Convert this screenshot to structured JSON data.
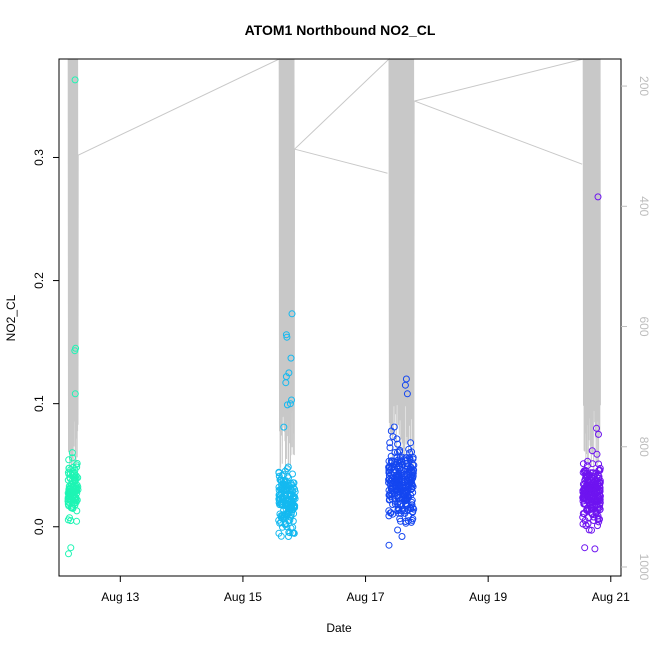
{
  "chart_data": {
    "type": "scatter",
    "title": "ATOM1 Northbound NO2_CL",
    "xlabel": "Date",
    "ylabel": "NO2_CL",
    "x_ticks": [
      "Aug 13",
      "Aug 15",
      "Aug 17",
      "Aug 19",
      "Aug 21"
    ],
    "y_ticks": [
      "0.0",
      "0.1",
      "0.2",
      "0.3"
    ],
    "y2_ticks": [
      "200",
      "400",
      "600",
      "800",
      "1000"
    ],
    "xlim": [
      "2024-08-12T00:00",
      "2024-08-21T04:00"
    ],
    "ylim": [
      -0.04,
      0.38
    ],
    "y2lim": [
      1015,
      155
    ],
    "secondary_series_color": "#c8c8c8",
    "groups": [
      {
        "date": "2024-08-12",
        "hour_start": 3.5,
        "hour_end": 7.5,
        "color": "#1ef5b4",
        "n": 110,
        "center": 0.03,
        "spread": 0.022,
        "highlights": [
          [
            6.3,
            0.363
          ],
          [
            6.5,
            0.145
          ],
          [
            6.2,
            0.143
          ],
          [
            6.4,
            0.108
          ],
          [
            3.7,
            -0.022
          ],
          [
            4.6,
            -0.017
          ]
        ]
      },
      {
        "date": "2024-08-15",
        "hour_start": 14.0,
        "hour_end": 20.5,
        "color": "#14b9f0",
        "n": 170,
        "center": 0.02,
        "spread": 0.022,
        "highlights": [
          [
            19.2,
            0.173
          ],
          [
            17.0,
            0.156
          ],
          [
            17.2,
            0.154
          ],
          [
            18.8,
            0.137
          ],
          [
            18.0,
            0.125
          ],
          [
            17.0,
            0.122
          ],
          [
            16.8,
            0.117
          ],
          [
            19.0,
            0.103
          ],
          [
            18.6,
            0.1
          ],
          [
            16.0,
            0.081
          ],
          [
            17.4,
            0.099
          ]
        ]
      },
      {
        "date": "2024-08-17",
        "hour_start": 9.0,
        "hour_end": 19.0,
        "color": "#1446f0",
        "n": 260,
        "center": 0.035,
        "spread": 0.026,
        "highlights": [
          [
            16.0,
            0.12
          ],
          [
            15.6,
            0.115
          ],
          [
            16.4,
            0.108
          ],
          [
            9.2,
            -0.015
          ]
        ]
      },
      {
        "date": "2024-08-20",
        "hour_start": 13.0,
        "hour_end": 20.0,
        "color": "#6e14f0",
        "n": 210,
        "center": 0.028,
        "spread": 0.022,
        "highlights": [
          [
            19.0,
            0.268
          ],
          [
            18.4,
            0.08
          ],
          [
            19.2,
            0.075
          ],
          [
            13.8,
            -0.017
          ]
        ]
      }
    ]
  }
}
